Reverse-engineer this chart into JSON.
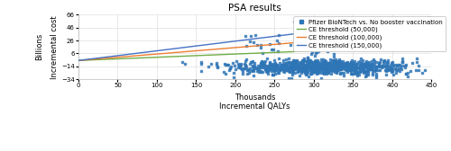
{
  "title": "PSA results",
  "xlabel": "Incremental QALYs",
  "xlabel_above": "Thousands",
  "ylabel": "Incremental cost",
  "ylabel_above": "Billions",
  "xlim": [
    0,
    450
  ],
  "ylim": [
    -34,
    66
  ],
  "xticks": [
    0,
    50,
    100,
    150,
    200,
    250,
    300,
    350,
    400,
    450
  ],
  "yticks": [
    -34,
    -14,
    6,
    26,
    46,
    66
  ],
  "ce_thresholds": [
    50000,
    100000,
    150000
  ],
  "ce_colors": [
    "#70ad47",
    "#ed7d31",
    "#4472c4"
  ],
  "ce_labels": [
    "CE threshold (50,000)",
    "CE threshold (100,000)",
    "CE threshold (150,000)"
  ],
  "scatter_color": "#2e75b6",
  "scatter_label": "Pfizer BioNTech vs. No booster vaccination",
  "line_intercept": -5.0,
  "background_color": "#ffffff",
  "grid_color": "#d9d9d9",
  "title_fontsize": 7.5,
  "label_fontsize": 6.0,
  "legend_fontsize": 5.0,
  "tick_fontsize": 5.0
}
